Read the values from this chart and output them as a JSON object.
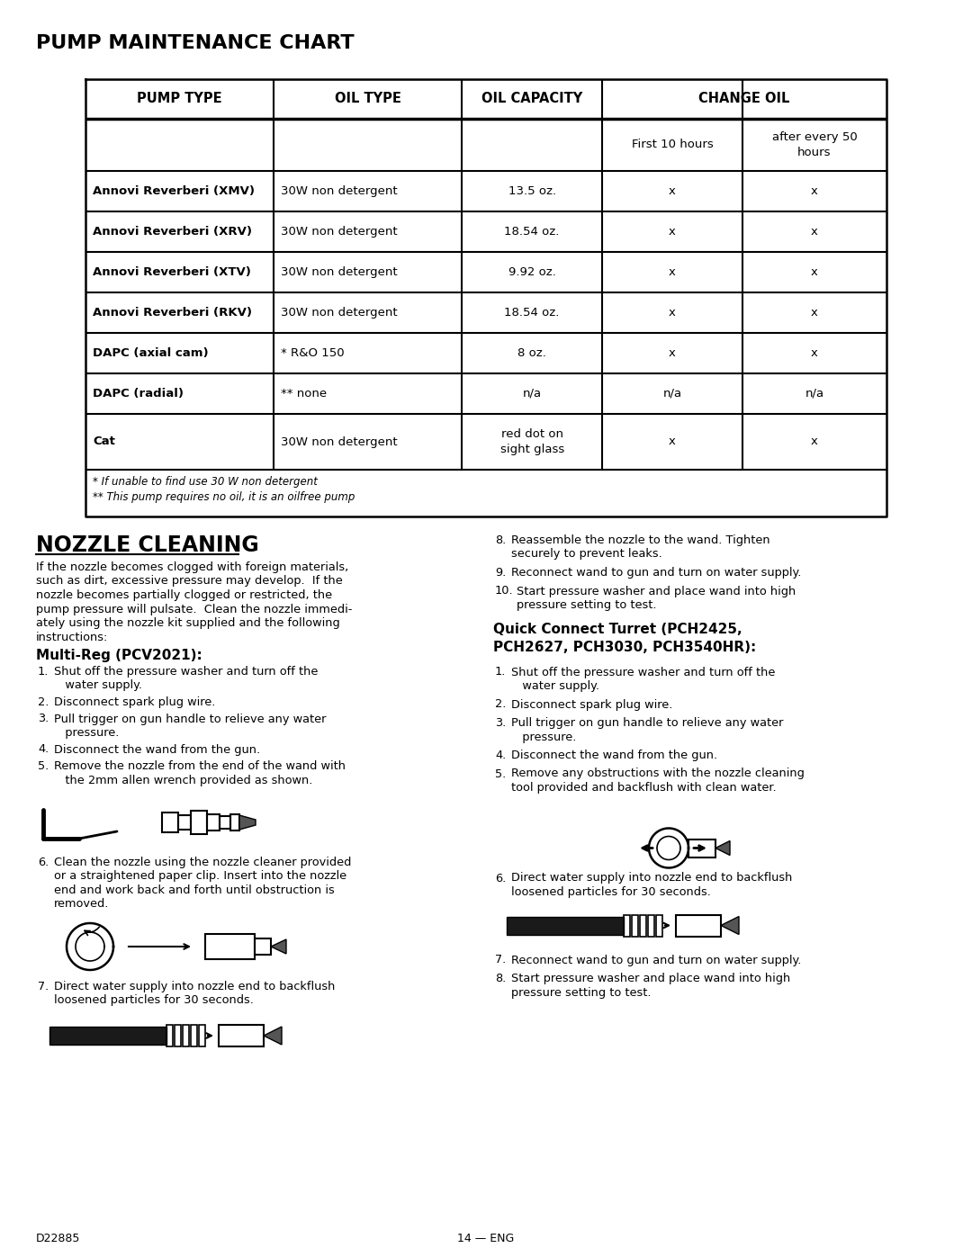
{
  "page_title": "PUMP MAINTENANCE CHART",
  "bg_color": "#ffffff",
  "table": {
    "headers": [
      "PUMP TYPE",
      "OIL TYPE",
      "OIL CAPACITY",
      "CHANGE OIL"
    ],
    "subheaders": [
      "",
      "",
      "",
      "First 10 hours",
      "after every 50\nhours"
    ],
    "rows": [
      [
        "Annovi Reverberi (XMV)",
        "30W non detergent",
        "13.5 oz.",
        "x",
        "x"
      ],
      [
        "Annovi Reverberi (XRV)",
        "30W non detergent",
        "18.54 oz.",
        "x",
        "x"
      ],
      [
        "Annovi Reverberi (XTV)",
        "30W non detergent",
        "9.92 oz.",
        "x",
        "x"
      ],
      [
        "Annovi Reverberi (RKV)",
        "30W non detergent",
        "18.54 oz.",
        "x",
        "x"
      ],
      [
        "DAPC (axial cam)",
        "* R&O 150",
        "8 oz.",
        "x",
        "x"
      ],
      [
        "DAPC (radial)",
        "** none",
        "n/a",
        "n/a",
        "n/a"
      ],
      [
        "Cat",
        "30W non detergent",
        "red dot on\nsight glass",
        "x",
        "x"
      ]
    ],
    "footnotes": [
      "* If unable to find use 30 W non detergent",
      "** This pump requires no oil, it is an oilfree pump"
    ]
  },
  "nozzle_section": {
    "title": "NOZZLE CLEANING",
    "intro_lines": [
      "If the nozzle becomes clogged with foreign materials,",
      "such as dirt, excessive pressure may develop.  If the",
      "nozzle becomes partially clogged or restricted, the",
      "pump pressure will pulsate.  Clean the nozzle immedi-",
      "ately using the nozzle kit supplied and the following",
      "instructions:"
    ],
    "multireg_title": "Multi-Reg (PCV2021):",
    "multireg_steps": [
      {
        "num": 1,
        "lines": [
          "Shut off the pressure washer and turn off the",
          "   water supply."
        ]
      },
      {
        "num": 2,
        "lines": [
          "Disconnect spark plug wire."
        ]
      },
      {
        "num": 3,
        "lines": [
          "Pull trigger on gun handle to relieve any water",
          "   pressure."
        ]
      },
      {
        "num": 4,
        "lines": [
          "Disconnect the wand from the gun."
        ]
      },
      {
        "num": 5,
        "lines": [
          "Remove the nozzle from the end of the wand with",
          "   the 2mm allen wrench provided as shown."
        ]
      }
    ],
    "step6_lines": [
      "Clean the nozzle using the nozzle cleaner provided",
      "or a straightened paper clip. Insert into the nozzle",
      "end and work back and forth until obstruction is",
      "removed."
    ],
    "step7_lines": [
      "Direct water supply into nozzle end to backflush",
      "loosened particles for 30 seconds."
    ],
    "right_steps": [
      {
        "num": 8,
        "lines": [
          "Reassemble the nozzle to the wand. Tighten",
          "securely to prevent leaks."
        ]
      },
      {
        "num": 9,
        "lines": [
          "Reconnect wand to gun and turn on water supply."
        ]
      },
      {
        "num": 10,
        "lines": [
          "Start pressure washer and place wand into high",
          "pressure setting to test."
        ]
      }
    ],
    "quick_title_lines": [
      "Quick Connect Turret (PCH2425,",
      "PCH2627, PCH3030, PCH3540HR):"
    ],
    "quick_steps": [
      {
        "num": 1,
        "lines": [
          "Shut off the pressure washer and turn off the",
          "   water supply."
        ]
      },
      {
        "num": 2,
        "lines": [
          "Disconnect spark plug wire."
        ]
      },
      {
        "num": 3,
        "lines": [
          "Pull trigger on gun handle to relieve any water",
          "   pressure."
        ]
      },
      {
        "num": 4,
        "lines": [
          "Disconnect the wand from the gun."
        ]
      },
      {
        "num": 5,
        "lines": [
          "Remove any obstructions with the nozzle cleaning",
          "tool provided and backflush with clean water."
        ]
      }
    ],
    "quick_step6_lines": [
      "Direct water supply into nozzle end to backflush",
      "loosened particles for 30 seconds."
    ],
    "quick_cont": [
      {
        "num": 7,
        "lines": [
          "Reconnect wand to gun and turn on water supply."
        ]
      },
      {
        "num": 8,
        "lines": [
          "Start pressure washer and place wand into high",
          "pressure setting to test."
        ]
      }
    ]
  },
  "footer_left": "D22885",
  "footer_center": "14 — ENG"
}
